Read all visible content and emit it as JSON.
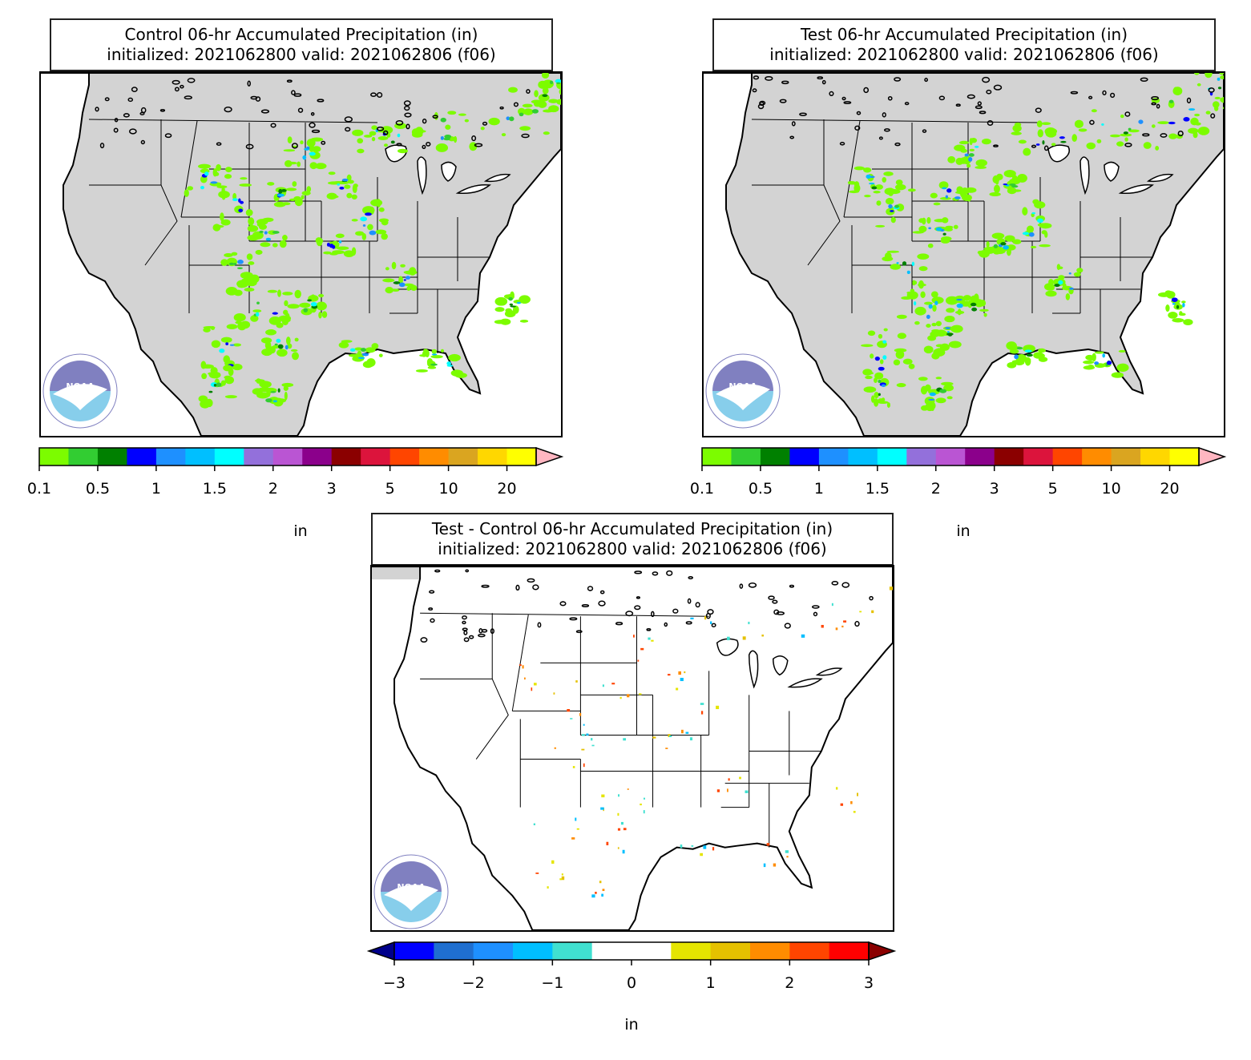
{
  "panels": [
    {
      "id": "control",
      "title_line1": "Control 06-hr Accumulated Precipitation (in)",
      "title_line2": " initialized: 2021062800 valid: 2021062806 (f06)",
      "colorbar": {
        "ticks": [
          "0.1",
          "0.5",
          "1",
          "1.5",
          "2",
          "3",
          "5",
          "10",
          "20"
        ],
        "colors": [
          "#7cfc00",
          "#32cd32",
          "#008000",
          "#0000ff",
          "#1e90ff",
          "#00bfff",
          "#00ffff",
          "#9370db",
          "#ba55d3",
          "#8b008b",
          "#8b0000",
          "#dc143c",
          "#ff4500",
          "#ff8c00",
          "#daa520",
          "#ffd700",
          "#ffff00"
        ],
        "extend_color": "#ffb6c1",
        "unit": "in"
      }
    },
    {
      "id": "test",
      "title_line1": "Test 06-hr Accumulated Precipitation (in)",
      "title_line2": " initialized: 2021062800 valid: 2021062806 (f06)",
      "colorbar": {
        "ticks": [
          "0.1",
          "0.5",
          "1",
          "1.5",
          "2",
          "3",
          "5",
          "10",
          "20"
        ],
        "colors": [
          "#7cfc00",
          "#32cd32",
          "#008000",
          "#0000ff",
          "#1e90ff",
          "#00bfff",
          "#00ffff",
          "#9370db",
          "#ba55d3",
          "#8b008b",
          "#8b0000",
          "#dc143c",
          "#ff4500",
          "#ff8c00",
          "#daa520",
          "#ffd700",
          "#ffff00"
        ],
        "extend_color": "#ffb6c1",
        "unit": "in"
      }
    },
    {
      "id": "diff",
      "title_line1": "Test - Control 06-hr Accumulated Precipitation (in)",
      "title_line2": " initialized: 2021062800 valid: 2021062806 (f06)",
      "colorbar": {
        "ticks": [
          "−3",
          "−2",
          "−1",
          "0",
          "1",
          "2",
          "3"
        ],
        "colors": [
          "#0000ff",
          "#1f6fd0",
          "#1e90ff",
          "#00bfff",
          "#40e0d0",
          "#ffffff",
          "#ffffff",
          "#e5e500",
          "#e5c100",
          "#ff8c00",
          "#ff4500",
          "#ff0000"
        ],
        "extend_low_color": "#00008b",
        "extend_high_color": "#8b0000",
        "unit": "in"
      }
    }
  ],
  "logo": {
    "text": "NOAA",
    "colors": {
      "top": "#8080c0",
      "bottom": "#87ceeb",
      "ring": "#ffffff"
    }
  },
  "map_colors": {
    "land": "#d3d3d3",
    "land_diff": "#ffffff",
    "water": "#ffffff",
    "borders": "#000000"
  }
}
